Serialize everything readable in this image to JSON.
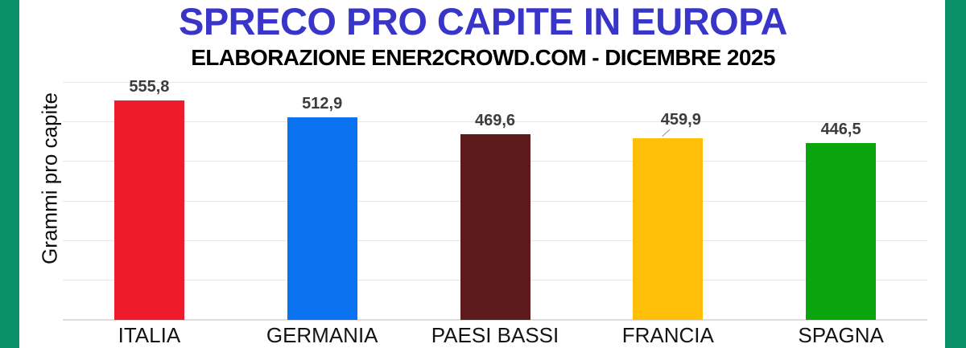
{
  "page": {
    "title": "SPRECO PRO CAPITE IN EUROPA",
    "subtitle": "ELABORAZIONE ENER2CROWD.COM - DICEMBRE 2025"
  },
  "colors": {
    "title_blue": "#3a35c9",
    "side_strip_green": "#0a9168",
    "gridline": "#e7e7e7",
    "baseline": "#dddddd",
    "value_label": "#3c3c3c"
  },
  "chart_data": {
    "type": "bar",
    "title": "SPRECO PRO CAPITE IN EUROPA",
    "subtitle": "ELABORAZIONE ENER2CROWD.COM - DICEMBRE 2025",
    "xlabel": "",
    "ylabel": "Grammi pro capite",
    "ylim": [
      0,
      600
    ],
    "gridline_step": 100,
    "grid": true,
    "legend": false,
    "y_tick_labels_visible": false,
    "categories": [
      "ITALIA",
      "GERMANIA",
      "PAESI BASSI",
      "FRANCIA",
      "SPAGNA"
    ],
    "values": [
      555.8,
      512.9,
      469.6,
      459.9,
      446.5
    ],
    "value_labels": [
      "555,8",
      "512,9",
      "469,6",
      "459,9",
      "446,5"
    ],
    "bar_colors": [
      "#ee1c2b",
      "#0b72f0",
      "#5e1b1b",
      "#ffbe07",
      "#0aa40c"
    ],
    "callouts": [
      false,
      false,
      false,
      true,
      false
    ]
  }
}
